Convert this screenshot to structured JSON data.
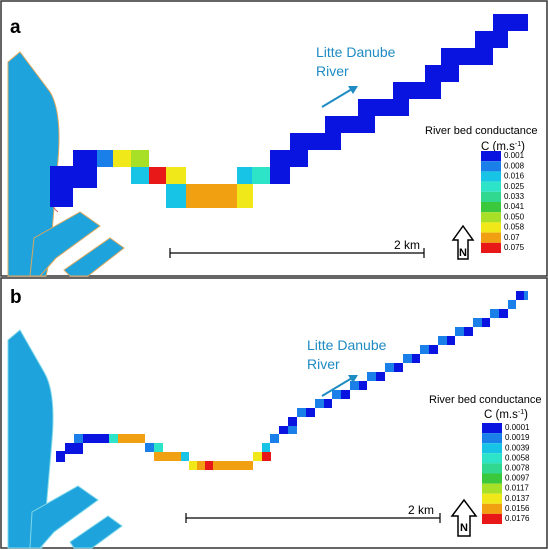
{
  "panels": [
    {
      "label": "a",
      "river_label_line1": "Litte Danube",
      "river_label_line2": "River",
      "legend": {
        "title": "River bed conductance",
        "unit_prefix": "C (m.s",
        "unit_sup": "-1",
        "unit_suffix": ")",
        "values": [
          "0.001",
          "0.008",
          "0.016",
          "0.025",
          "0.033",
          "0.041",
          "0.050",
          "0.058",
          "0.07",
          "0.075"
        ]
      },
      "scale_label": "2 km",
      "north_label": "N"
    },
    {
      "label": "b",
      "river_label_line1": "Litte Danube",
      "river_label_line2": "River",
      "legend": {
        "title": "River bed conductance",
        "unit_prefix": "C (m.s",
        "unit_sup": "-1",
        "unit_suffix": ")",
        "values": [
          "0.0001",
          "0.0019",
          "0.0039",
          "0.0058",
          "0.0078",
          "0.0097",
          "0.0117",
          "0.0137",
          "0.0156",
          "0.0176"
        ]
      },
      "scale_label": "2 km",
      "north_label": "N"
    }
  ],
  "colors": {
    "ramp": [
      "#0a14e0",
      "#1a7fe8",
      "#18c4e6",
      "#2de4c8",
      "#30d890",
      "#3cc83c",
      "#a8e028",
      "#f0e818",
      "#f0a010",
      "#e81818"
    ],
    "danube": "#1fa3dc",
    "danube_edge": "#d8a860",
    "river_label": "#1e8bc3",
    "border": "#333333"
  }
}
